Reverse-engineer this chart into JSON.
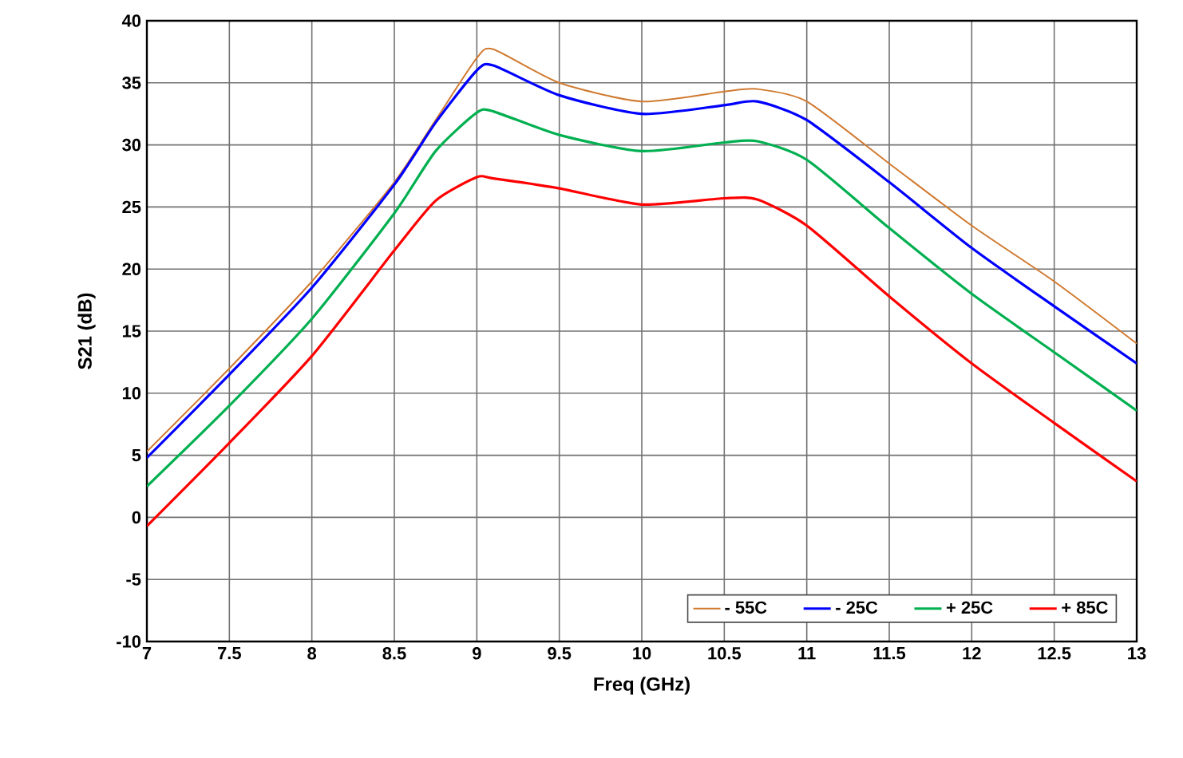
{
  "chart_data": {
    "type": "line",
    "xlabel": "Freq (GHz)",
    "ylabel": "S21 (dB)",
    "x": [
      7,
      7.5,
      8,
      8.5,
      8.75,
      9,
      9.1,
      9.5,
      10,
      10.5,
      10.7,
      11,
      11.5,
      12,
      12.5,
      13
    ],
    "series": [
      {
        "name": "- 55C",
        "color": "#d07a30",
        "values": [
          5.3,
          12,
          19,
          27,
          32,
          37,
          37.7,
          35,
          33.5,
          34.3,
          34.5,
          33.5,
          28.5,
          23.5,
          19,
          14
        ]
      },
      {
        "name": "- 25C",
        "color": "#0000ff",
        "values": [
          4.8,
          11.5,
          18.5,
          26.8,
          31.8,
          36,
          36.4,
          34,
          32.5,
          33.2,
          33.5,
          32,
          27,
          21.7,
          17,
          12.4
        ]
      },
      {
        "name": "+ 25C",
        "color": "#00b050",
        "values": [
          2.5,
          9,
          16,
          24.5,
          29.5,
          32.6,
          32.7,
          30.8,
          29.5,
          30.2,
          30.3,
          28.8,
          23.3,
          18,
          13.3,
          8.6
        ]
      },
      {
        "name": "+ 85C",
        "color": "#ff0000",
        "values": [
          -0.7,
          6,
          13,
          21.5,
          25.5,
          27.4,
          27.3,
          26.5,
          25.2,
          25.7,
          25.6,
          23.5,
          17.8,
          12.4,
          7.6,
          2.9
        ]
      }
    ],
    "xlim": [
      7,
      13
    ],
    "ylim": [
      -10,
      40
    ],
    "xticks": [
      7,
      7.5,
      8,
      8.5,
      9,
      9.5,
      10,
      10.5,
      11,
      11.5,
      12,
      12.5,
      13
    ],
    "yticks": [
      -10,
      -5,
      0,
      5,
      10,
      15,
      20,
      25,
      30,
      35,
      40
    ],
    "grid": true,
    "legend": "bottom right",
    "line_style": "solid",
    "marker": "none"
  }
}
